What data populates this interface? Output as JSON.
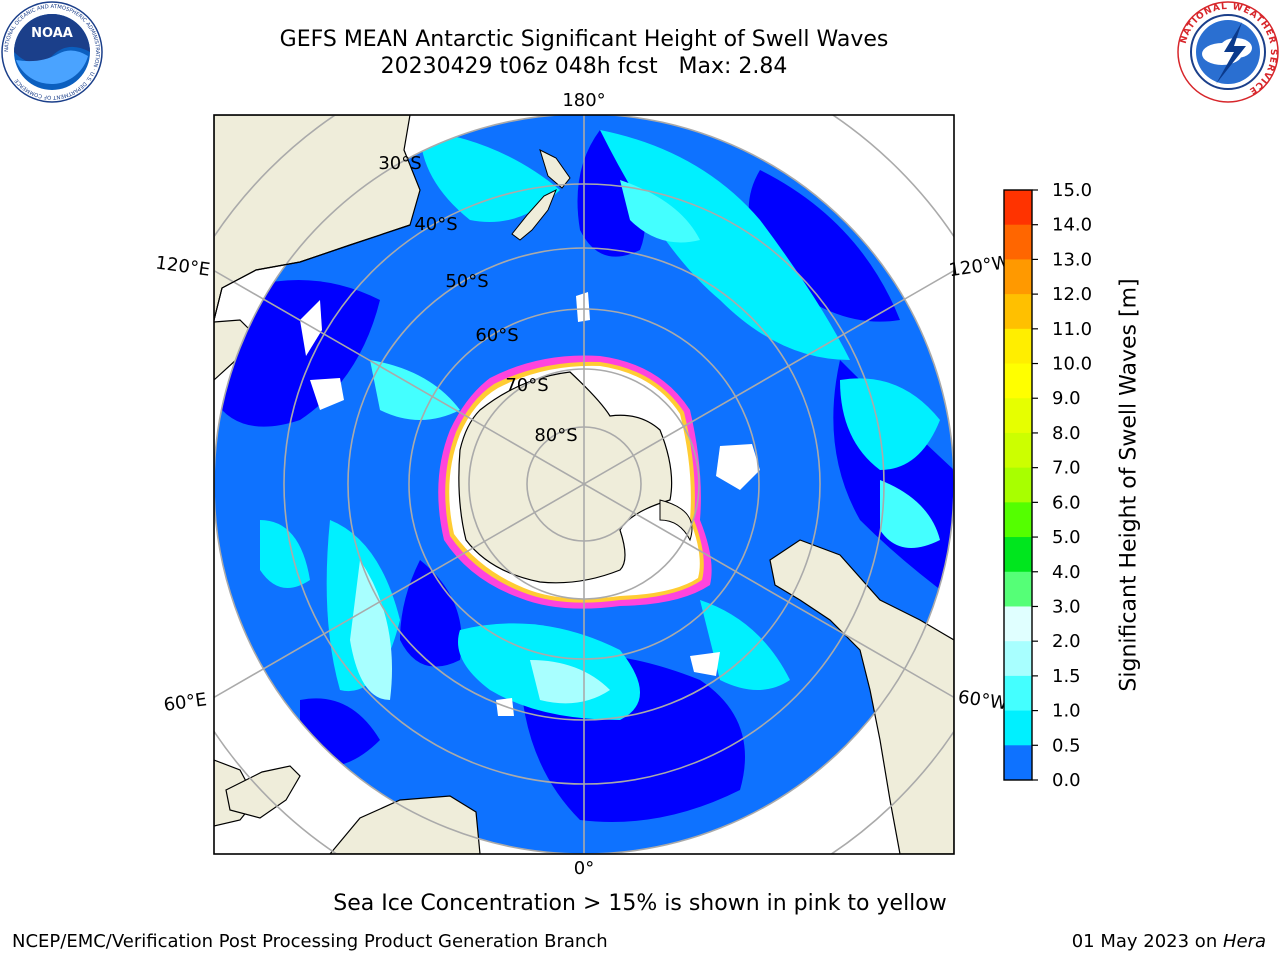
{
  "header": {
    "title": "GEFS MEAN Antarctic Significant Height of Swell Waves",
    "subtitle": "20230429 t06z 048h fcst   Max: 2.84"
  },
  "logos": {
    "noaa": {
      "name": "noaa-logo",
      "text": "NOAA",
      "ring_text": "NATIONAL OCEANIC AND ATMOSPHERIC ADMINISTRATION · U.S. DEPARTMENT OF COMMERCE"
    },
    "nws": {
      "name": "nws-logo",
      "ring_text": "NATIONAL WEATHER SERVICE"
    }
  },
  "map": {
    "projection": "south-polar-stereographic",
    "lon_labels": [
      "180°",
      "120°E",
      "120°W",
      "60°E",
      "60°W",
      "0°"
    ],
    "lat_labels": [
      "30°S",
      "40°S",
      "50°S",
      "60°S",
      "70°S",
      "80°S"
    ],
    "land_color": "#efedda",
    "ocean_base_color": "#0000ff",
    "ice_colors": [
      "#ff33cc",
      "#ff66dd",
      "#ffcc33",
      "#ffffff"
    ]
  },
  "colorbar": {
    "title": "Significant Height of Swell Waves [m]",
    "ticks": [
      "15.0",
      "14.0",
      "13.0",
      "12.0",
      "11.0",
      "10.0",
      "9.0",
      "8.0",
      "7.0",
      "6.0",
      "5.0",
      "4.0",
      "3.0",
      "2.0",
      "1.5",
      "1.0",
      "0.5",
      "0.0"
    ],
    "levels": [
      0,
      0.5,
      1.0,
      1.5,
      2.0,
      2.5,
      3.0,
      4.0,
      5.0,
      6.0,
      7.0,
      8.0,
      9.0,
      10.0,
      11.0,
      12.0,
      13.0,
      14.0,
      15.0
    ],
    "colors": [
      "#0000ff",
      "#0e72ff",
      "#00f0ff",
      "#44ffff",
      "#a8ffff",
      "#e0ffff",
      "#55ff77",
      "#00e61e",
      "#54ff00",
      "#a8ff00",
      "#ccff00",
      "#e6ff00",
      "#ffff00",
      "#ffee00",
      "#ffc000",
      "#ff9900",
      "#ff6600",
      "#ff3300",
      "#ff0000"
    ]
  },
  "note": "Sea Ice Concentration > 15% is shown in pink to yellow",
  "footer": {
    "left": "NCEP/EMC/Verification Post Processing Product Generation Branch",
    "right_date": "01 May 2023 on ",
    "right_host": "Hera"
  }
}
